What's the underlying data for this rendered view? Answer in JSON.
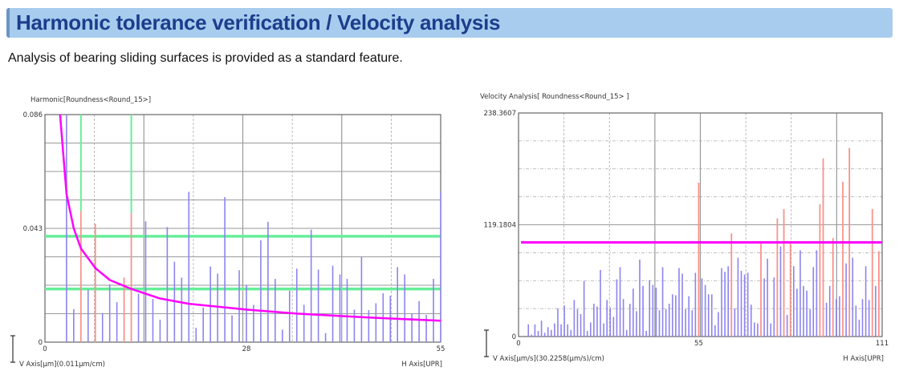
{
  "header": {
    "title": "Harmonic tolerance verification / Velocity analysis",
    "subtitle": "Analysis of bearing sliding surfaces is provided as a standard feature."
  },
  "colors": {
    "banner": "#a8ccee",
    "title": "#1d3d8c",
    "bar": "#8c84f0",
    "bar_exceed": "#f7938c",
    "tolerance_curve": "#ff00ff",
    "tolerance_band": "#66ee99"
  },
  "chart_data": [
    {
      "type": "bar",
      "title": "Harmonic[Roundness<Round_15>]",
      "xlabel": "H Axis[UPR]",
      "ylabel": "V Axis[µm](0.011µm/cm)",
      "xlim": [
        0,
        55
      ],
      "ylim": [
        0,
        0.086
      ],
      "x_ticks": [
        "0",
        "28",
        "55"
      ],
      "y_ticks": [
        "0",
        "0.043",
        "0.086"
      ],
      "grid": true,
      "harmonic_start": 3,
      "values": [
        0.086,
        0.0125,
        0.0495,
        0.0198,
        0.0447,
        0.011,
        0.0219,
        0.0151,
        0.0244,
        0.0487,
        0.0183,
        0.0457,
        0.0163,
        0.0085,
        0.0435,
        0.0304,
        0.0244,
        0.0568,
        0.0054,
        0.0131,
        0.0286,
        0.0259,
        0.0548,
        0.0101,
        0.0272,
        0.0216,
        0.0141,
        0.0385,
        0.0455,
        0.0239,
        0.0047,
        0.0195,
        0.0278,
        0.0141,
        0.0425,
        0.0274,
        0.0034,
        0.0289,
        0.0256,
        0.0239,
        0.0123,
        0.0322,
        0.0121,
        0.0147,
        0.0185,
        0.0175,
        0.0284,
        0.0256,
        0.0108,
        0.0155,
        0.0103,
        0.0239,
        0.0568
      ],
      "exceed_harmonics": [
        5,
        7,
        11,
        12
      ],
      "green_marker_harmonics": [
        5,
        12
      ],
      "tolerance_lines": [
        0.04,
        0.0201
      ],
      "tolerance_curve": {
        "x": [
          2.1,
          3,
          4,
          5,
          7,
          9,
          12,
          16,
          20,
          28,
          35,
          45,
          55
        ],
        "y": [
          0.086,
          0.056,
          0.043,
          0.0354,
          0.028,
          0.0235,
          0.0201,
          0.0165,
          0.0145,
          0.0123,
          0.0108,
          0.0093,
          0.0081
        ]
      }
    },
    {
      "type": "bar",
      "title": "Velocity Analysis[ Roundness<Round_15> ]",
      "xlabel": "H Axis[UPR]",
      "ylabel": "V Axis[µm/s](30.2258(µm/s)/cm)",
      "xlim": [
        0,
        111
      ],
      "ylim": [
        0,
        238.3607
      ],
      "x_ticks": [
        "0",
        "55",
        "111"
      ],
      "y_ticks": [
        "0",
        "119.1804",
        "238.3607"
      ],
      "grid": true,
      "harmonic_start": 3,
      "values": [
        13,
        2,
        13,
        6,
        17,
        4,
        10,
        7,
        14,
        30,
        13,
        33,
        13,
        7,
        39,
        29,
        24,
        59,
        6,
        15,
        35,
        32,
        71,
        14,
        39,
        31,
        21,
        61,
        74,
        40,
        7,
        35,
        51,
        27,
        82,
        54,
        6,
        60,
        55,
        52,
        28,
        74,
        29,
        35,
        45,
        44,
        73,
        67,
        29,
        43,
        28,
        68,
        164,
        62,
        55,
        45,
        45,
        12,
        26,
        73,
        69,
        75,
        110,
        30,
        84,
        70,
        66,
        68,
        34,
        15,
        14,
        100,
        62,
        83,
        14,
        63,
        126,
        96,
        136,
        23,
        102,
        75,
        51,
        92,
        54,
        49,
        29,
        74,
        92,
        141,
        190,
        36,
        54,
        105,
        40,
        43,
        165,
        78,
        201,
        84,
        33,
        18,
        40,
        75,
        39,
        136,
        54,
        91
      ],
      "exceed_harmonics": [
        55,
        65,
        74,
        79,
        81,
        83,
        92,
        93,
        96,
        99,
        101,
        108,
        110
      ],
      "tolerance_level": 100.4
    }
  ]
}
